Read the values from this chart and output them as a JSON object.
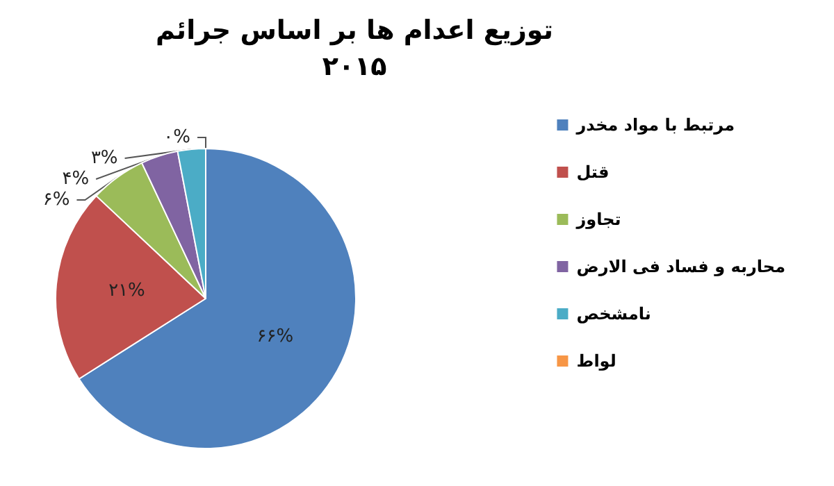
{
  "chart_data": {
    "type": "pie",
    "title": "توزیع اعدام ها بر اساس جرائم\n۲۰۱۵",
    "categories": [
      "مرتبط با مواد مخدر",
      "قتل",
      "تجاوز",
      "محاربه و فساد فی الارض",
      "نامشخص",
      "لواط"
    ],
    "values": [
      66,
      21,
      6,
      4,
      3,
      0
    ],
    "value_labels": [
      "۶۶%",
      "۲۱%",
      "۶%",
      "۴%",
      "۳%",
      "۰%"
    ],
    "colors": [
      "#4f81bd",
      "#c0504d",
      "#9bbb59",
      "#8064a2",
      "#4bacc6",
      "#f79646"
    ],
    "legend": "right"
  }
}
